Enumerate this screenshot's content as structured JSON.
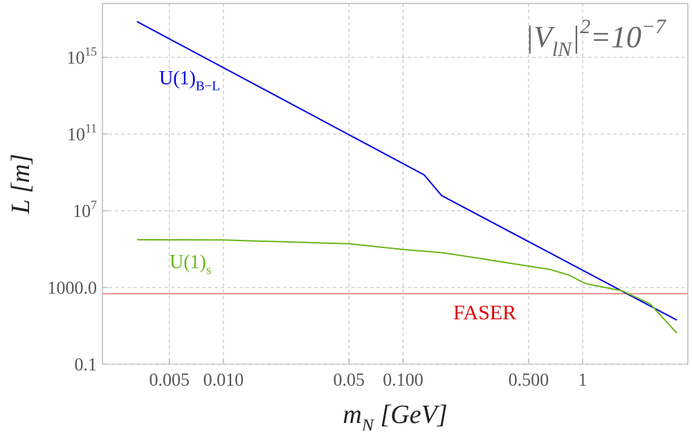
{
  "chart_data": {
    "type": "line",
    "xlabel": {
      "text": "m",
      "sub": "N",
      "suffix": " [GeV]"
    },
    "ylabel": "L [m]",
    "xscale": "log",
    "yscale": "log",
    "xlim": [
      0.00212,
      3.85
    ],
    "ylim": [
      0.1,
      6.5e+17
    ],
    "xticks": [
      0.005,
      {
        "value": 0.01,
        "label": "0.010"
      },
      0.05,
      {
        "value": 0.1,
        "label": "0.100"
      },
      {
        "value": 0.5,
        "label": "0.500"
      },
      1
    ],
    "yticks": [
      0.1,
      {
        "value": 1000,
        "label": "1000.0"
      },
      {
        "value": 10000000.0,
        "label": "10",
        "sup": "7"
      },
      {
        "value": 100000000000.0,
        "label": "10",
        "sup": "11"
      },
      {
        "value": 1000000000000000.0,
        "label": "10",
        "sup": "15"
      }
    ],
    "grid": true,
    "series": [
      {
        "name": "U(1)",
        "subscript": "B−L",
        "color": "#0000e6",
        "x": [
          0.0033,
          0.131,
          0.164,
          3.34
        ],
        "values": [
          7.4e+16,
          750000000.0,
          62000000.0,
          20
        ]
      },
      {
        "name": "U(1)",
        "subscript": "s",
        "color": "#6ab61a",
        "x": [
          0.0033,
          0.01,
          0.05,
          0.1,
          0.167,
          0.284,
          0.5,
          0.66,
          0.84,
          1,
          1.07,
          1.67,
          2.38,
          3.34
        ],
        "values": [
          310000,
          300000,
          190000,
          96000,
          65000,
          30000,
          13000,
          8700,
          4400,
          1900,
          1500,
          660,
          137,
          4.2
        ]
      }
    ],
    "hline": {
      "name": "FASER",
      "value": 475,
      "color": "#f07070",
      "label_color": "#e00000"
    },
    "annotation": {
      "base": "|V",
      "sub": "lN",
      "close": "|",
      "sup": "2",
      "rhs": "=10",
      "rhs_sup": "−7"
    }
  }
}
